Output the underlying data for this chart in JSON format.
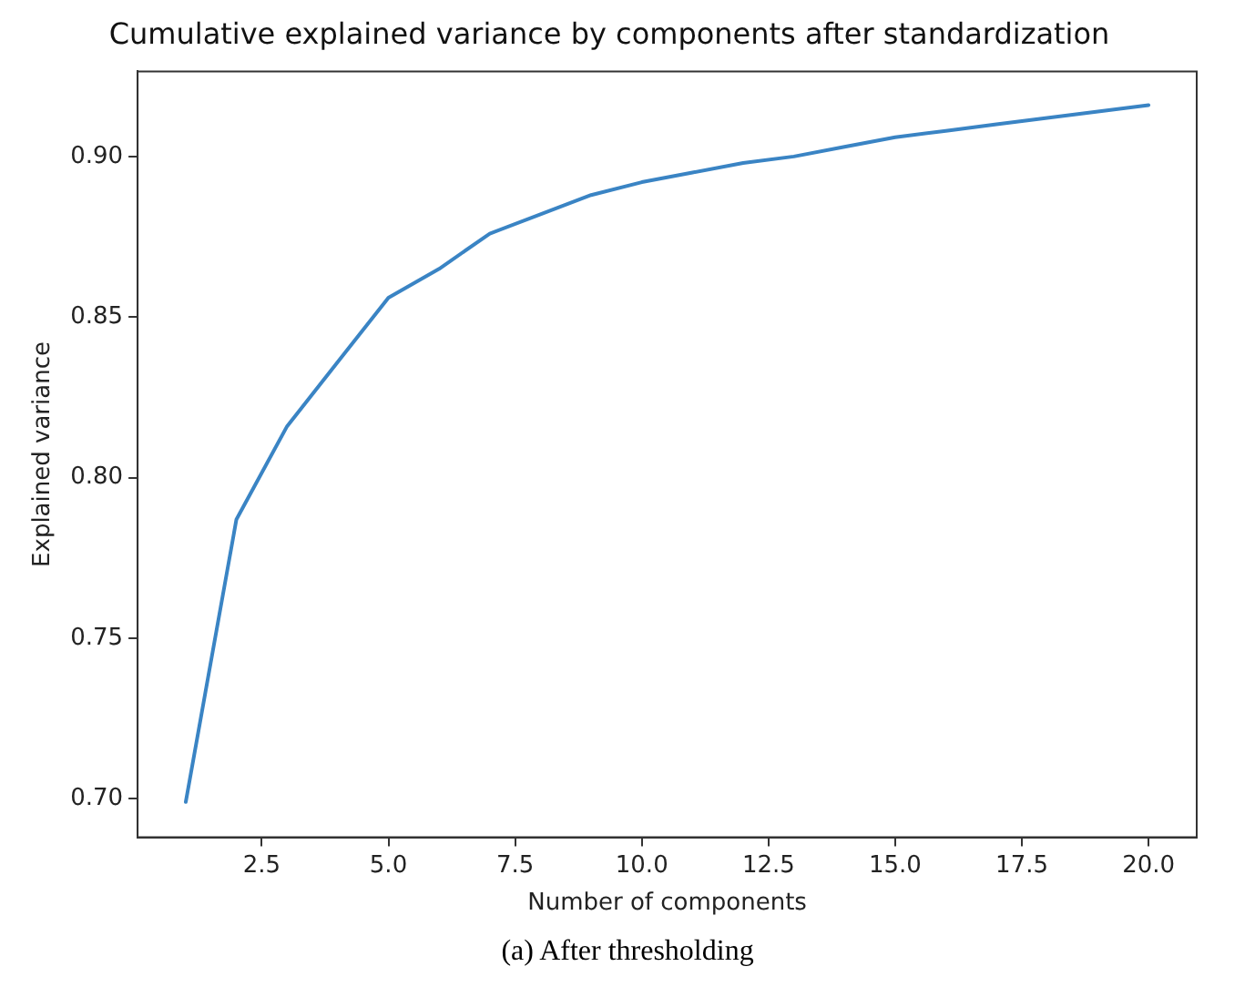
{
  "chart_data": {
    "type": "line",
    "title": "Cumulative explained variance by components after standardization",
    "xlabel": "Number of components",
    "ylabel": "Explained variance",
    "x": [
      1,
      2,
      3,
      4,
      5,
      6,
      7,
      8,
      9,
      10,
      11,
      12,
      13,
      14,
      15,
      16,
      17,
      18,
      19,
      20
    ],
    "series": [
      {
        "color": "#3a84c4",
        "values": [
          0.699,
          0.787,
          0.816,
          0.836,
          0.856,
          0.865,
          0.876,
          0.882,
          0.888,
          0.892,
          0.895,
          0.898,
          0.9,
          0.903,
          0.906,
          0.908,
          0.91,
          0.912,
          0.914,
          0.916
        ]
      }
    ],
    "xlim": [
      0.05,
      20.95
    ],
    "ylim": [
      0.688,
      0.9265
    ],
    "xticks": [
      {
        "value": 2.5,
        "label": "2.5"
      },
      {
        "value": 5,
        "label": "5.0"
      },
      {
        "value": 7.5,
        "label": "7.5"
      },
      {
        "value": 10,
        "label": "10.0"
      },
      {
        "value": 12.5,
        "label": "12.5"
      },
      {
        "value": 15,
        "label": "15.0"
      },
      {
        "value": 17.5,
        "label": "17.5"
      },
      {
        "value": 20,
        "label": "20.0"
      }
    ],
    "yticks": [
      {
        "value": 0.7,
        "label": "0.70"
      },
      {
        "value": 0.75,
        "label": "0.75"
      },
      {
        "value": 0.8,
        "label": "0.80"
      },
      {
        "value": 0.85,
        "label": "0.85"
      },
      {
        "value": 0.9,
        "label": "0.90"
      }
    ],
    "grid": false,
    "legend": false,
    "marker": "none",
    "line_style": "solid",
    "annotations": [
      "(a) After thresholding"
    ]
  }
}
